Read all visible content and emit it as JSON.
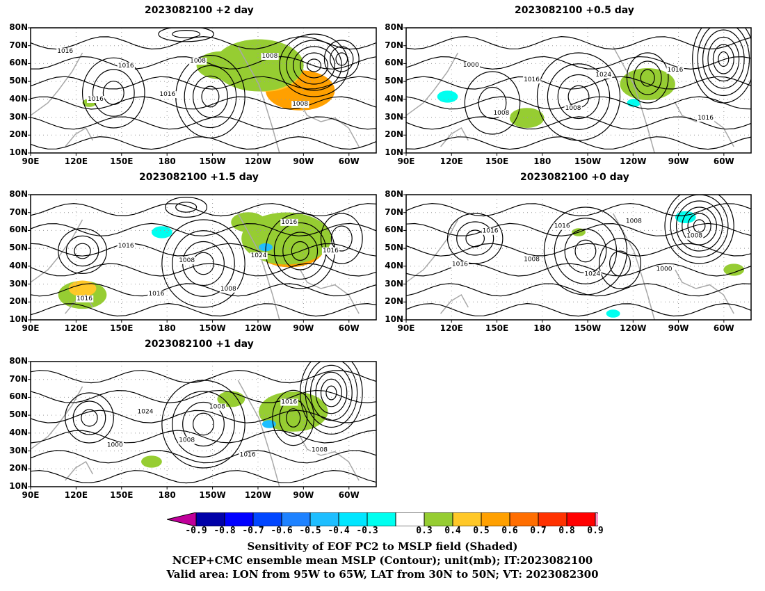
{
  "panels": [
    {
      "title": "2023082100 +2 day",
      "contour_labels": [
        "1016",
        "1016",
        "1008",
        "1016",
        "1008",
        "1008",
        "1016"
      ]
    },
    {
      "title": "2023082100 +0.5 day",
      "contour_labels": [
        "1000",
        "1008",
        "1016",
        "1008",
        "1024",
        "1016",
        "1016"
      ]
    },
    {
      "title": "2023082100 +1.5 day",
      "contour_labels": [
        "1016",
        "1008",
        "1016",
        "1016",
        "1024",
        "1016",
        "1008",
        "1016"
      ]
    },
    {
      "title": "2023082100 +0 day",
      "contour_labels": [
        "1008",
        "1008",
        "1016",
        "1016",
        "1000",
        "1016",
        "1024",
        "1008"
      ]
    },
    {
      "title": "2023082100 +1 day",
      "contour_labels": [
        "1008",
        "1016",
        "1000",
        "1008",
        "1008",
        "1024",
        "1016"
      ]
    }
  ],
  "y_axis_labels": [
    "80N",
    "70N",
    "60N",
    "50N",
    "40N",
    "30N",
    "20N",
    "10N"
  ],
  "x_axis_labels": [
    "90E",
    "120E",
    "150E",
    "180",
    "150W",
    "120W",
    "90W",
    "60W"
  ],
  "colorbar": {
    "tick_labels": [
      "-0.9",
      "-0.8",
      "-0.7",
      "-0.6",
      "-0.5",
      "-0.4",
      "-0.3",
      "0.3",
      "0.4",
      "0.5",
      "0.6",
      "0.7",
      "0.8",
      "0.9"
    ],
    "colors": [
      "#c0009a",
      "#0000a8",
      "#0000ff",
      "#0046ff",
      "#1e82ff",
      "#1ebeff",
      "#00e6ff",
      "#00fff0",
      "#ffffff",
      "#96cd32",
      "#ffc828",
      "#ffa000",
      "#ff6e00",
      "#ff3200",
      "#ff0000",
      "#ff96c8"
    ]
  },
  "caption": {
    "line1": "Sensitivity of EOF PC2 to MSLP field (Shaded)",
    "line2": "NCEP+CMC ensemble mean MSLP (Contour); unit(mb); IT:2023082100",
    "line3": "Valid area: LON from 95W to 65W, LAT from 30N to 50N; VT: 2023082300"
  }
}
